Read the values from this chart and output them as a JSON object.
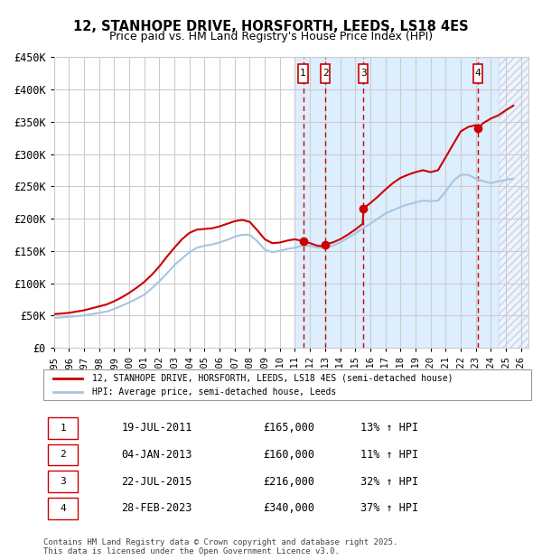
{
  "title1": "12, STANHOPE DRIVE, HORSFORTH, LEEDS, LS18 4ES",
  "title2": "Price paid vs. HM Land Registry's House Price Index (HPI)",
  "ylabel_ticks": [
    "£0",
    "£50K",
    "£100K",
    "£150K",
    "£200K",
    "£250K",
    "£300K",
    "£350K",
    "£400K",
    "£450K"
  ],
  "ytick_vals": [
    0,
    50000,
    100000,
    150000,
    200000,
    250000,
    300000,
    350000,
    400000,
    450000
  ],
  "xmin": 1995.0,
  "xmax": 2026.5,
  "ymin": 0,
  "ymax": 450000,
  "hpi_color": "#aac4e0",
  "price_color": "#cc0000",
  "legend_label_price": "12, STANHOPE DRIVE, HORSFORTH, LEEDS, LS18 4ES (semi-detached house)",
  "legend_label_hpi": "HPI: Average price, semi-detached house, Leeds",
  "transactions": [
    {
      "num": 1,
      "date": "19-JUL-2011",
      "price": 165000,
      "hpi_pct": "13%",
      "x": 2011.54
    },
    {
      "num": 2,
      "date": "04-JAN-2013",
      "price": 160000,
      "hpi_pct": "11%",
      "x": 2013.01
    },
    {
      "num": 3,
      "date": "22-JUL-2015",
      "price": 216000,
      "hpi_pct": "32%",
      "x": 2015.55
    },
    {
      "num": 4,
      "date": "28-FEB-2023",
      "price": 340000,
      "hpi_pct": "37%",
      "x": 2023.16
    }
  ],
  "footnote": "Contains HM Land Registry data © Crown copyright and database right 2025.\nThis data is licensed under the Open Government Licence v3.0.",
  "bg_shaded_start": 2011.0,
  "hatch_start": 2024.5,
  "grid_color": "#cccccc",
  "bg_color": "#ffffff",
  "shaded_bg_color": "#ddeeff"
}
